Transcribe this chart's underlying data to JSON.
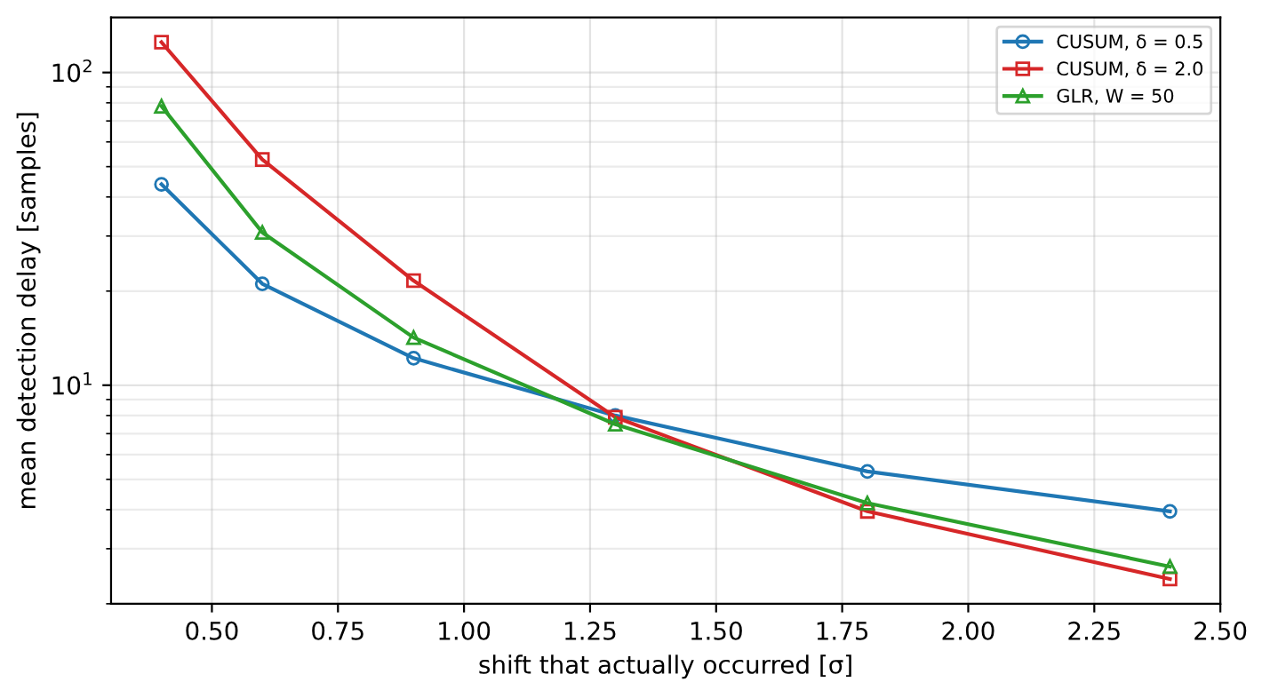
{
  "chart_data": {
    "type": "line",
    "xlabel": "shift that actually occurred [σ]",
    "ylabel": "mean detection delay [samples]",
    "x": [
      0.4,
      0.6,
      0.9,
      1.3,
      1.8,
      2.4
    ],
    "series": [
      {
        "name": "CUSUM, δ = 0.5",
        "color": "#1f77b4",
        "marker": "circle",
        "values": [
          43.9,
          21.1,
          12.2,
          8.0,
          5.3,
          3.95
        ]
      },
      {
        "name": "CUSUM, δ = 2.0",
        "color": "#d62728",
        "marker": "square",
        "values": [
          125,
          52.7,
          21.6,
          7.9,
          3.95,
          2.4
        ]
      },
      {
        "name": "GLR, W = 50",
        "color": "#2ca02c",
        "marker": "triangle",
        "values": [
          78,
          30.8,
          14.2,
          7.5,
          4.2,
          2.63
        ]
      }
    ],
    "log": "y",
    "xlim": [
      0.3,
      2.5
    ],
    "xticks": [
      {
        "value": 0.5,
        "label": "0.50"
      },
      {
        "value": 0.75,
        "label": "0.75"
      },
      {
        "value": 1.0,
        "label": "1.00"
      },
      {
        "value": 1.25,
        "label": "1.25"
      },
      {
        "value": 1.5,
        "label": "1.50"
      },
      {
        "value": 1.75,
        "label": "1.75"
      },
      {
        "value": 2.0,
        "label": "2.00"
      },
      {
        "value": 2.25,
        "label": "2.25"
      },
      {
        "value": 2.5,
        "label": "2.50"
      }
    ],
    "ylim": [
      2.0,
      150
    ],
    "yticks": [
      {
        "value": 10,
        "label": "10$^{1}$"
      },
      {
        "value": 100,
        "label": "10$^{2}$"
      }
    ],
    "grid": true,
    "legend": "top right",
    "line_style": "solid"
  }
}
